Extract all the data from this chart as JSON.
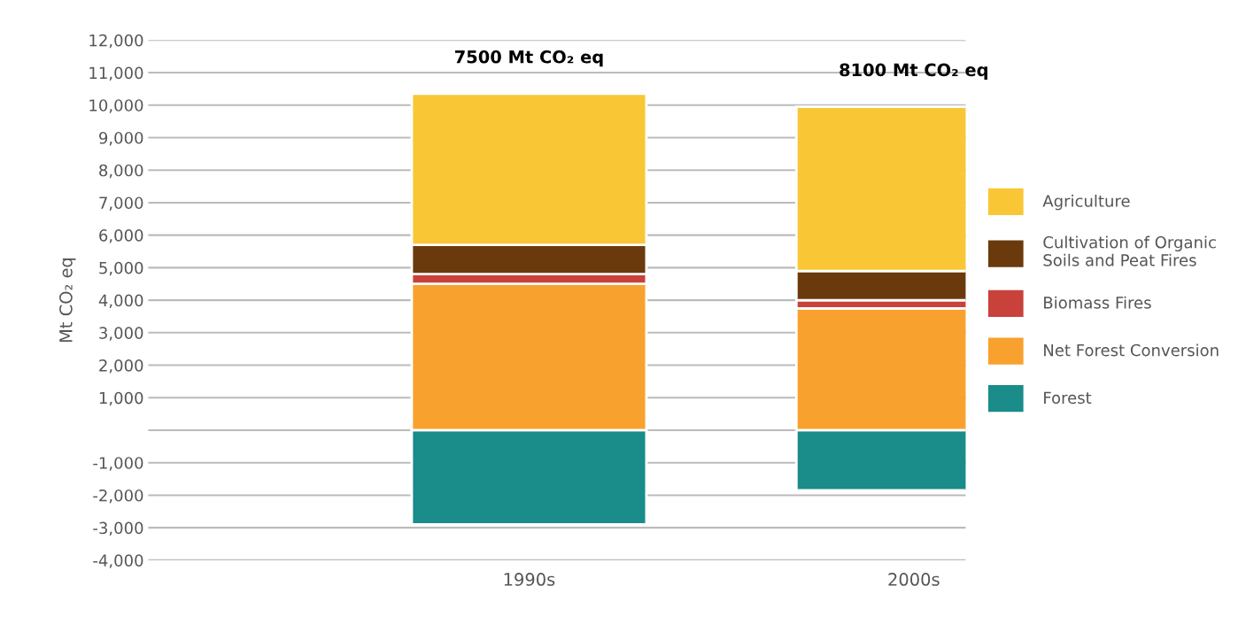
{
  "chart_data": {
    "type": "bar",
    "stacked": true,
    "ylabel": "Mt CO₂ eq",
    "categories": [
      "1990s",
      "2000s"
    ],
    "series": [
      {
        "name": "Forest",
        "color": "#1a8c8a",
        "values": [
          -2900,
          -1850
        ]
      },
      {
        "name": "Net Forest Conversion",
        "color": "#f9a12e",
        "values": [
          4500,
          3750
        ]
      },
      {
        "name": "Biomass Fires",
        "color": "#c8413a",
        "values": [
          300,
          250
        ]
      },
      {
        "name": "Cultivation of Organic\nSoils and Peat Fires",
        "color": "#6b3a0c",
        "values": [
          900,
          900
        ]
      },
      {
        "name": "Agriculture",
        "color": "#f9c735",
        "values": [
          4650,
          5050
        ]
      }
    ],
    "annotations": [
      "7500 Mt CO₂ eq",
      "8100 Mt CO₂ eq"
    ],
    "ylim": [
      -4000,
      12000
    ],
    "yticks": [
      {
        "value": -4000,
        "label": "-4,000"
      },
      {
        "value": -3000,
        "label": "-3,000"
      },
      {
        "value": -2000,
        "label": "-2,000"
      },
      {
        "value": -1000,
        "label": "-1,000"
      },
      {
        "value": 0,
        "label": null
      },
      {
        "value": 1000,
        "label": "1,000"
      },
      {
        "value": 2000,
        "label": "2,000"
      },
      {
        "value": 3000,
        "label": "3,000"
      },
      {
        "value": 4000,
        "label": "4,000"
      },
      {
        "value": 5000,
        "label": "5,000"
      },
      {
        "value": 6000,
        "label": "6,000"
      },
      {
        "value": 7000,
        "label": "7,000"
      },
      {
        "value": 8000,
        "label": "8,000"
      },
      {
        "value": 9000,
        "label": "9,000"
      },
      {
        "value": 10000,
        "label": "10,000"
      },
      {
        "value": 11000,
        "label": "11,000"
      },
      {
        "value": 12000,
        "label": "12,000"
      }
    ],
    "grid": "y",
    "legend": "right"
  }
}
